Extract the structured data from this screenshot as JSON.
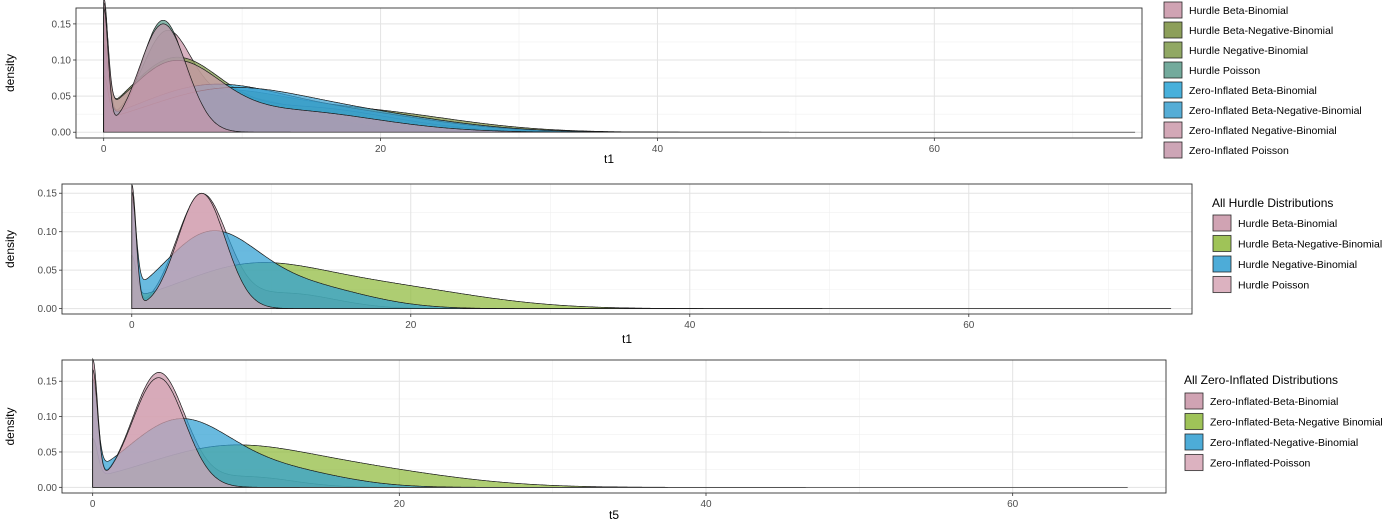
{
  "chart_data": [
    {
      "type": "area",
      "title": "",
      "xlabel": "t1",
      "ylabel": "density",
      "xlim": [
        -2,
        75
      ],
      "ylim": [
        -0.008,
        0.172
      ],
      "xticks": [
        0,
        20,
        40,
        60
      ],
      "yticks": [
        0.0,
        0.05,
        0.1,
        0.15
      ],
      "ytick_labels": [
        "0.00",
        "0.05",
        "0.10",
        "0.15"
      ],
      "grid": true,
      "legend_placement": "right",
      "legend_title": "",
      "series": [
        {
          "name": "Hurdle Beta-Binomial",
          "color": "#c994a7",
          "zero_spike": 0.17,
          "bumps": [
            [
              0.105,
              4.5,
              1.7
            ],
            [
              0.05,
              9.0,
              5.5
            ]
          ],
          "tail_end": 48
        },
        {
          "name": "Hurdle Beta-Negative-Binomial",
          "color": "#7a8f3e",
          "zero_spike": 0.12,
          "bumps": [
            [
              0.048,
              7.5,
              5.0
            ],
            [
              0.03,
              18.0,
              7.0
            ]
          ],
          "tail_end": 73
        },
        {
          "name": "Hurdle Negative-Binomial",
          "color": "#7f9a4a",
          "zero_spike": 0.13,
          "bumps": [
            [
              0.09,
              5.0,
              3.2
            ],
            [
              0.035,
              14.0,
              6.5
            ]
          ],
          "tail_end": 46
        },
        {
          "name": "Hurdle Poisson",
          "color": "#5c9c8c",
          "zero_spike": 0.168,
          "bumps": [
            [
              0.155,
              4.3,
              1.6
            ]
          ],
          "tail_end": 12
        },
        {
          "name": "Zero-Inflated Beta-Binomial",
          "color": "#29a3d6",
          "zero_spike": 0.1,
          "bumps": [
            [
              0.052,
              7.0,
              5.0
            ],
            [
              0.03,
              16.0,
              7.0
            ]
          ],
          "tail_end": 38
        },
        {
          "name": "Zero-Inflated Beta-Negative-Binomial",
          "color": "#3aa0d0",
          "zero_spike": 0.06,
          "bumps": [
            [
              0.048,
              8.0,
              5.5
            ],
            [
              0.028,
              17.0,
              7.0
            ]
          ],
          "tail_end": 40
        },
        {
          "name": "Zero-Inflated Negative-Binomial",
          "color": "#cc9aac",
          "zero_spike": 0.15,
          "bumps": [
            [
              0.085,
              5.0,
              3.2
            ],
            [
              0.03,
              13.0,
              6.5
            ]
          ],
          "tail_end": 36
        },
        {
          "name": "Zero-Inflated Poisson",
          "color": "#c597aa",
          "zero_spike": 0.165,
          "bumps": [
            [
              0.15,
              4.3,
              1.7
            ]
          ],
          "tail_end": 12
        }
      ]
    },
    {
      "type": "area",
      "title": "",
      "xlabel": "t1",
      "ylabel": "density",
      "xlim": [
        -5,
        76
      ],
      "ylim": [
        -0.007,
        0.162
      ],
      "xticks": [
        0,
        20,
        40,
        60
      ],
      "yticks": [
        0.0,
        0.05,
        0.1,
        0.15
      ],
      "ytick_labels": [
        "0.00",
        "0.05",
        "0.10",
        "0.15"
      ],
      "grid": true,
      "legend_placement": "right",
      "legend_title": "All Hurdle Distributions",
      "series": [
        {
          "name": "Hurdle Beta-Binomial",
          "color": "#c994a7",
          "zero_spike": 0.158,
          "bumps": [
            [
              0.145,
              5.0,
              1.8
            ],
            [
              0.02,
              11.0,
              3.5
            ]
          ],
          "tail_end": 39
        },
        {
          "name": "Hurdle Beta-Negative-Binomial",
          "color": "#8fba3c",
          "zero_spike": 0.055,
          "bumps": [
            [
              0.045,
              8.0,
              5.0
            ],
            [
              0.03,
              17.0,
              7.0
            ]
          ],
          "tail_end": 73
        },
        {
          "name": "Hurdle Negative-Binomial",
          "color": "#2f9fd2",
          "zero_spike": 0.12,
          "bumps": [
            [
              0.09,
              5.5,
              3.3
            ],
            [
              0.03,
              12.0,
              4.5
            ]
          ],
          "tail_end": 48
        },
        {
          "name": "Hurdle Poisson",
          "color": "#d7a6b6",
          "zero_spike": 0.15,
          "bumps": [
            [
              0.15,
              5.0,
              1.7
            ]
          ],
          "tail_end": 12
        }
      ]
    },
    {
      "type": "area",
      "title": "",
      "xlabel": "t5",
      "ylabel": "density",
      "xlim": [
        -2,
        70
      ],
      "ylim": [
        -0.008,
        0.18
      ],
      "xticks": [
        0,
        20,
        40,
        60
      ],
      "yticks": [
        0.0,
        0.05,
        0.1,
        0.15
      ],
      "ytick_labels": [
        "0.00",
        "0.05",
        "0.10",
        "0.15"
      ],
      "grid": true,
      "legend_placement": "right",
      "legend_title": "All Zero-Inflated Distributions",
      "series": [
        {
          "name": "Zero-Inflated-Beta-Binomial",
          "color": "#c994a7",
          "zero_spike": 0.175,
          "bumps": [
            [
              0.16,
              4.3,
              1.7
            ],
            [
              0.015,
              10.0,
              3.0
            ]
          ],
          "tail_end": 36
        },
        {
          "name": "Zero-Inflated-Beta-Negative Binomial",
          "color": "#8fba3c",
          "zero_spike": 0.055,
          "bumps": [
            [
              0.045,
              8.0,
              5.0
            ],
            [
              0.028,
              16.0,
              6.5
            ]
          ],
          "tail_end": 66
        },
        {
          "name": "Zero-Inflated-Negative-Binomial",
          "color": "#2f9fd2",
          "zero_spike": 0.13,
          "bumps": [
            [
              0.09,
              5.5,
              3.3
            ],
            [
              0.025,
              12.0,
              4.0
            ]
          ],
          "tail_end": 45
        },
        {
          "name": "Zero-Inflated-Poisson",
          "color": "#d7a6b6",
          "zero_spike": 0.16,
          "bumps": [
            [
              0.155,
              4.3,
              1.7
            ]
          ],
          "tail_end": 12
        }
      ]
    }
  ]
}
